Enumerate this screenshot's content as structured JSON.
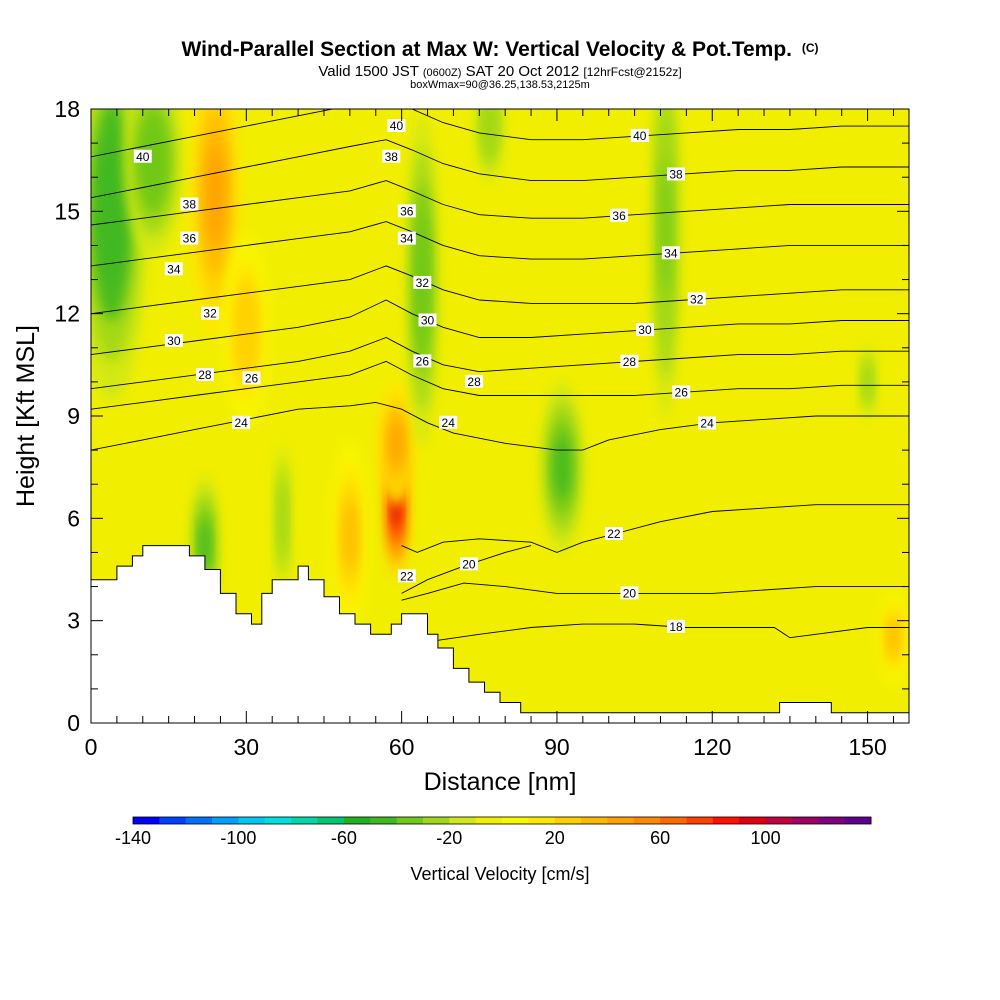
{
  "chart_data": {
    "type": "heatmap",
    "title": "Wind-Parallel Section at Max W: Vertical Velocity & Pot.Temp.",
    "title_mark": "(C)",
    "subtitle_parts": [
      "Valid 1500 JST",
      "(0600Z)",
      "SAT 20 Oct 2012",
      "[12hrFcst@2152z]"
    ],
    "subtitle2": "boxWmax=90@36.25,138.53,2125m",
    "xlabel": "Distance [nm]",
    "ylabel": "Height [Kft MSL]",
    "xlim": [
      0,
      158
    ],
    "ylim": [
      0,
      18
    ],
    "x_ticks": [
      "0",
      "30",
      "60",
      "90",
      "120",
      "150"
    ],
    "x_tick_values": [
      0,
      30,
      60,
      90,
      120,
      150
    ],
    "y_ticks": [
      "0",
      "3",
      "6",
      "9",
      "12",
      "15",
      "18"
    ],
    "y_tick_values": [
      0,
      3,
      6,
      9,
      12,
      15,
      18
    ],
    "colorbar": {
      "title": "Vertical Velocity [cm/s]",
      "min": -140,
      "max": 140,
      "step": 10,
      "tick_labels": [
        "-140",
        "-100",
        "-60",
        "-20",
        "20",
        "60",
        "100"
      ],
      "tick_values": [
        -140,
        -100,
        -60,
        -20,
        20,
        60,
        100
      ],
      "colors": [
        "#0000ff",
        "#0040ff",
        "#0070ff",
        "#00a0ff",
        "#00c8f0",
        "#00e0e0",
        "#00d8a8",
        "#00c870",
        "#20b020",
        "#40b820",
        "#70c818",
        "#a0d818",
        "#d0e818",
        "#f0f000",
        "#f8f800",
        "#ffe800",
        "#ffd000",
        "#ffb800",
        "#ffa000",
        "#ff8800",
        "#ff6800",
        "#ff4000",
        "#ff1000",
        "#e00010",
        "#c00040",
        "#a00060",
        "#800080",
        "#600090"
      ]
    },
    "terrain_profile": {
      "x": [
        0,
        3,
        5,
        8,
        10,
        15,
        19,
        22,
        25,
        28,
        31,
        33,
        35,
        40,
        42,
        45,
        48,
        51,
        54,
        56,
        58,
        60,
        63,
        65,
        67,
        70,
        73,
        76,
        79,
        83,
        90,
        100,
        110,
        120,
        132,
        133,
        135,
        136,
        142,
        143,
        150,
        158
      ],
      "y": [
        4.2,
        4.2,
        4.6,
        4.9,
        5.2,
        5.2,
        4.9,
        4.5,
        3.8,
        3.2,
        2.9,
        3.8,
        4.2,
        4.6,
        4.2,
        3.7,
        3.2,
        2.9,
        2.6,
        2.6,
        2.9,
        3.2,
        3.2,
        2.6,
        2.2,
        1.6,
        1.2,
        0.9,
        0.6,
        0.3,
        0.3,
        0.3,
        0.3,
        0.3,
        0.3,
        0.6,
        0.6,
        0.6,
        0.6,
        0.3,
        0.3,
        0.3
      ]
    },
    "w_features": [
      {
        "x": 59,
        "y": 6.5,
        "sx": 1.8,
        "sy": 1.6,
        "w": 90
      },
      {
        "x": 59,
        "y": 8.2,
        "sx": 2.5,
        "sy": 1.3,
        "w": 40
      },
      {
        "x": 24,
        "y": 15.5,
        "sx": 3.5,
        "sy": 3.0,
        "w": 45
      },
      {
        "x": 30,
        "y": 11.5,
        "sx": 3,
        "sy": 2,
        "w": 25
      },
      {
        "x": 4,
        "y": 15,
        "sx": 5,
        "sy": 4,
        "w": -50
      },
      {
        "x": 12,
        "y": 16.5,
        "sx": 4,
        "sy": 2,
        "w": -40
      },
      {
        "x": 64,
        "y": 13,
        "sx": 2.2,
        "sy": 3.5,
        "w": -40
      },
      {
        "x": 77,
        "y": 17.5,
        "sx": 2.5,
        "sy": 1.5,
        "w": -30
      },
      {
        "x": 91,
        "y": 7.5,
        "sx": 3,
        "sy": 1.8,
        "w": -45
      },
      {
        "x": 111,
        "y": 14.5,
        "sx": 2,
        "sy": 4,
        "w": -35
      },
      {
        "x": 22,
        "y": 5.2,
        "sx": 2,
        "sy": 1.5,
        "w": -45
      },
      {
        "x": 37,
        "y": 6,
        "sx": 1.5,
        "sy": 2,
        "w": -25
      },
      {
        "x": 50,
        "y": 5.5,
        "sx": 2.5,
        "sy": 2,
        "w": 30
      },
      {
        "x": 155,
        "y": 2.5,
        "sx": 2,
        "sy": 1,
        "w": 30
      },
      {
        "x": 150,
        "y": 10,
        "sx": 1.5,
        "sy": 1,
        "w": -25
      }
    ],
    "theta_contours": [
      {
        "label": "18",
        "label_x": 113,
        "x": [
          58,
          66,
          75,
          85,
          95,
          105,
          115,
          125,
          132,
          135,
          140,
          150,
          158
        ],
        "y": [
          2.2,
          2.4,
          2.6,
          2.8,
          2.9,
          2.9,
          2.8,
          2.8,
          2.8,
          2.5,
          2.6,
          2.8,
          2.8
        ]
      },
      {
        "label": "20",
        "label_x": 104,
        "x": [
          60,
          65,
          72,
          80,
          90,
          100,
          110,
          120,
          130,
          140,
          150,
          158
        ],
        "y": [
          3.6,
          3.8,
          4.1,
          4.0,
          3.8,
          3.8,
          3.8,
          3.8,
          3.9,
          4.0,
          4.0,
          4.0
        ]
      },
      {
        "label": "20",
        "label_x": 73,
        "x": [
          60,
          65,
          72,
          80,
          85
        ],
        "y": [
          3.8,
          4.2,
          4.6,
          5.0,
          5.2
        ]
      },
      {
        "label": "22",
        "label_x": 101,
        "x": [
          60,
          63,
          68,
          75,
          85,
          90,
          95,
          100,
          110,
          120,
          130,
          140,
          150,
          158
        ],
        "y": [
          5.2,
          5.0,
          5.3,
          5.4,
          5.3,
          5.0,
          5.3,
          5.5,
          5.9,
          6.2,
          6.3,
          6.4,
          6.4,
          6.4
        ]
      },
      {
        "label": "24",
        "label_x": 119,
        "x": [
          0,
          10,
          20,
          30,
          40,
          50,
          55,
          60,
          65,
          70,
          80,
          90,
          95,
          100,
          110,
          120,
          130,
          140,
          150,
          158
        ],
        "y": [
          8.0,
          8.3,
          8.6,
          8.9,
          9.2,
          9.3,
          9.4,
          9.2,
          8.8,
          8.5,
          8.2,
          8.0,
          8.0,
          8.3,
          8.6,
          8.8,
          8.9,
          9.0,
          9.0,
          9.0
        ]
      },
      {
        "label": "26",
        "label_x": 114,
        "x": [
          0,
          10,
          20,
          30,
          40,
          50,
          57,
          62,
          68,
          75,
          85,
          95,
          105,
          115,
          125,
          135,
          145,
          158
        ],
        "y": [
          9.2,
          9.4,
          9.6,
          9.8,
          10.0,
          10.2,
          10.6,
          10.2,
          9.8,
          9.6,
          9.6,
          9.6,
          9.6,
          9.7,
          9.8,
          9.8,
          9.9,
          9.9
        ]
      },
      {
        "label": "28",
        "label_x": 104,
        "x": [
          0,
          10,
          20,
          30,
          40,
          50,
          57,
          62,
          68,
          75,
          85,
          95,
          105,
          115,
          125,
          135,
          145,
          158
        ],
        "y": [
          9.8,
          10.0,
          10.2,
          10.4,
          10.6,
          10.9,
          11.3,
          10.9,
          10.5,
          10.3,
          10.4,
          10.5,
          10.6,
          10.7,
          10.8,
          10.8,
          10.9,
          10.9
        ]
      },
      {
        "label": "30",
        "label_x": 107,
        "x": [
          0,
          10,
          20,
          30,
          40,
          50,
          57,
          62,
          68,
          75,
          85,
          95,
          105,
          115,
          125,
          135,
          145,
          158
        ],
        "y": [
          10.8,
          11.0,
          11.2,
          11.4,
          11.6,
          11.9,
          12.4,
          12.0,
          11.6,
          11.3,
          11.3,
          11.4,
          11.5,
          11.6,
          11.7,
          11.7,
          11.8,
          11.8
        ]
      },
      {
        "label": "32",
        "label_x": 117,
        "x": [
          0,
          10,
          20,
          30,
          40,
          50,
          57,
          62,
          68,
          75,
          85,
          95,
          105,
          115,
          125,
          135,
          145,
          158
        ],
        "y": [
          12.0,
          12.2,
          12.4,
          12.6,
          12.8,
          13.0,
          13.4,
          13.1,
          12.7,
          12.4,
          12.3,
          12.3,
          12.3,
          12.4,
          12.5,
          12.6,
          12.7,
          12.7
        ]
      },
      {
        "label": "34",
        "label_x": 112,
        "x": [
          0,
          10,
          20,
          30,
          40,
          50,
          57,
          62,
          68,
          75,
          85,
          95,
          105,
          115,
          125,
          135,
          145,
          158
        ],
        "y": [
          13.4,
          13.6,
          13.8,
          14.0,
          14.2,
          14.4,
          14.7,
          14.4,
          14.0,
          13.7,
          13.6,
          13.6,
          13.7,
          13.8,
          13.9,
          14.0,
          14.0,
          14.0
        ]
      },
      {
        "label": "36",
        "label_x": 102,
        "x": [
          0,
          10,
          20,
          30,
          40,
          50,
          57,
          62,
          68,
          75,
          85,
          95,
          105,
          115,
          125,
          135,
          145,
          158
        ],
        "y": [
          14.6,
          14.8,
          15.0,
          15.2,
          15.4,
          15.6,
          15.9,
          15.6,
          15.2,
          14.9,
          14.8,
          14.8,
          14.9,
          15.0,
          15.1,
          15.2,
          15.2,
          15.2
        ]
      },
      {
        "label": "38",
        "label_x": 113,
        "x": [
          0,
          10,
          20,
          30,
          40,
          50,
          57,
          62,
          68,
          75,
          85,
          95,
          105,
          115,
          125,
          135,
          145,
          158
        ],
        "y": [
          15.4,
          15.7,
          16.0,
          16.3,
          16.6,
          16.9,
          17.1,
          16.8,
          16.4,
          16.1,
          15.9,
          15.9,
          16.0,
          16.1,
          16.2,
          16.2,
          16.3,
          16.3
        ]
      },
      {
        "label": "40",
        "label_x": 106,
        "x": [
          0,
          10,
          20,
          30,
          40,
          50,
          57,
          62,
          68,
          75,
          85,
          95,
          105,
          115,
          125,
          135,
          145,
          158
        ],
        "y": [
          16.6,
          16.9,
          17.2,
          17.5,
          17.8,
          18.1,
          18.3,
          18.0,
          17.6,
          17.3,
          17.1,
          17.1,
          17.2,
          17.3,
          17.4,
          17.4,
          17.5,
          17.5
        ]
      }
    ],
    "extra_contour_labels": [
      {
        "label": "40",
        "x": 10,
        "y": 16.6
      },
      {
        "label": "38",
        "x": 19,
        "y": 15.2
      },
      {
        "label": "36",
        "x": 19,
        "y": 14.2
      },
      {
        "label": "34",
        "x": 16,
        "y": 13.3
      },
      {
        "label": "32",
        "x": 23,
        "y": 12.0
      },
      {
        "label": "30",
        "x": 16,
        "y": 11.2
      },
      {
        "label": "28",
        "x": 22,
        "y": 10.2
      },
      {
        "label": "26",
        "x": 31,
        "y": 10.1
      },
      {
        "label": "24",
        "x": 29,
        "y": 8.8
      },
      {
        "label": "40",
        "x": 59,
        "y": 17.5
      },
      {
        "label": "38",
        "x": 58,
        "y": 16.6
      },
      {
        "label": "36",
        "x": 61,
        "y": 15.0
      },
      {
        "label": "34",
        "x": 61,
        "y": 14.2
      },
      {
        "label": "32",
        "x": 64,
        "y": 12.9
      },
      {
        "label": "30",
        "x": 65,
        "y": 11.8
      },
      {
        "label": "26",
        "x": 64,
        "y": 10.6
      },
      {
        "label": "28",
        "x": 74,
        "y": 10.0
      },
      {
        "label": "24",
        "x": 69,
        "y": 8.8
      },
      {
        "label": "22",
        "x": 61,
        "y": 4.3
      }
    ]
  }
}
